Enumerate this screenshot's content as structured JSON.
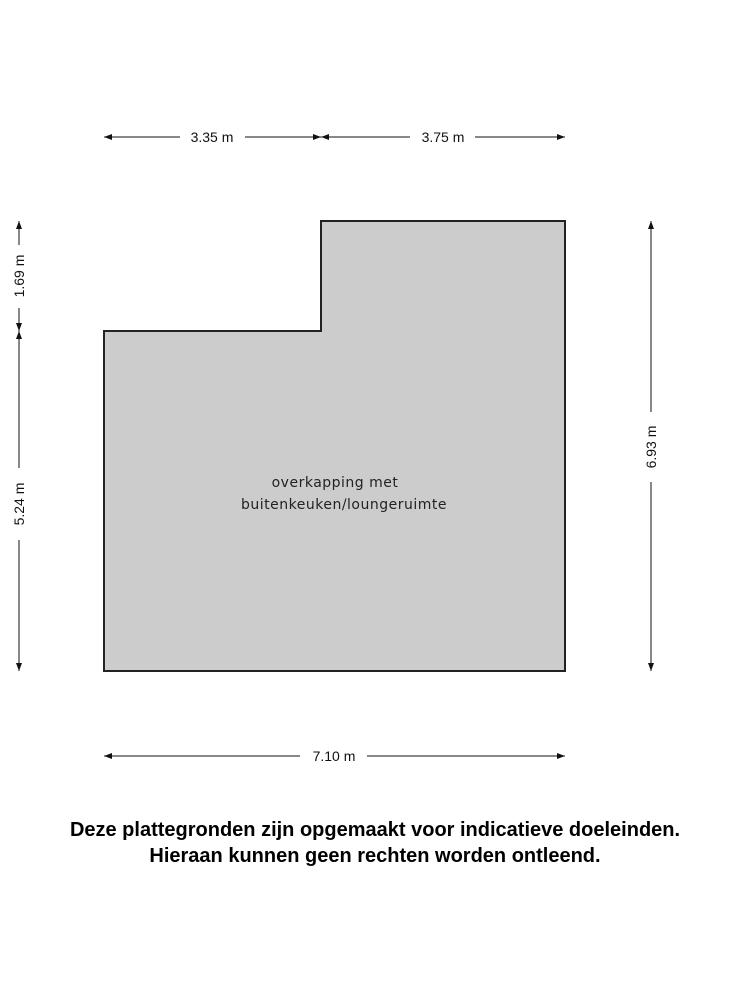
{
  "floorplan": {
    "room_label_line1": "overkapping met",
    "room_label_line2": "buitenkeuken/loungeruimte",
    "room_fill": "#cccccc",
    "wall_color": "#222222",
    "dimensions": {
      "top_left": "3.35 m",
      "top_right": "3.75 m",
      "left_top": "1.69 m",
      "left_bottom": "5.24 m",
      "right": "6.93 m",
      "bottom": "7.10 m"
    }
  },
  "disclaimer": {
    "line1": "Deze plattegronden zijn opgemaakt voor indicatieve doeleinden.",
    "line2": "Hieraan kunnen geen rechten worden ontleend."
  }
}
